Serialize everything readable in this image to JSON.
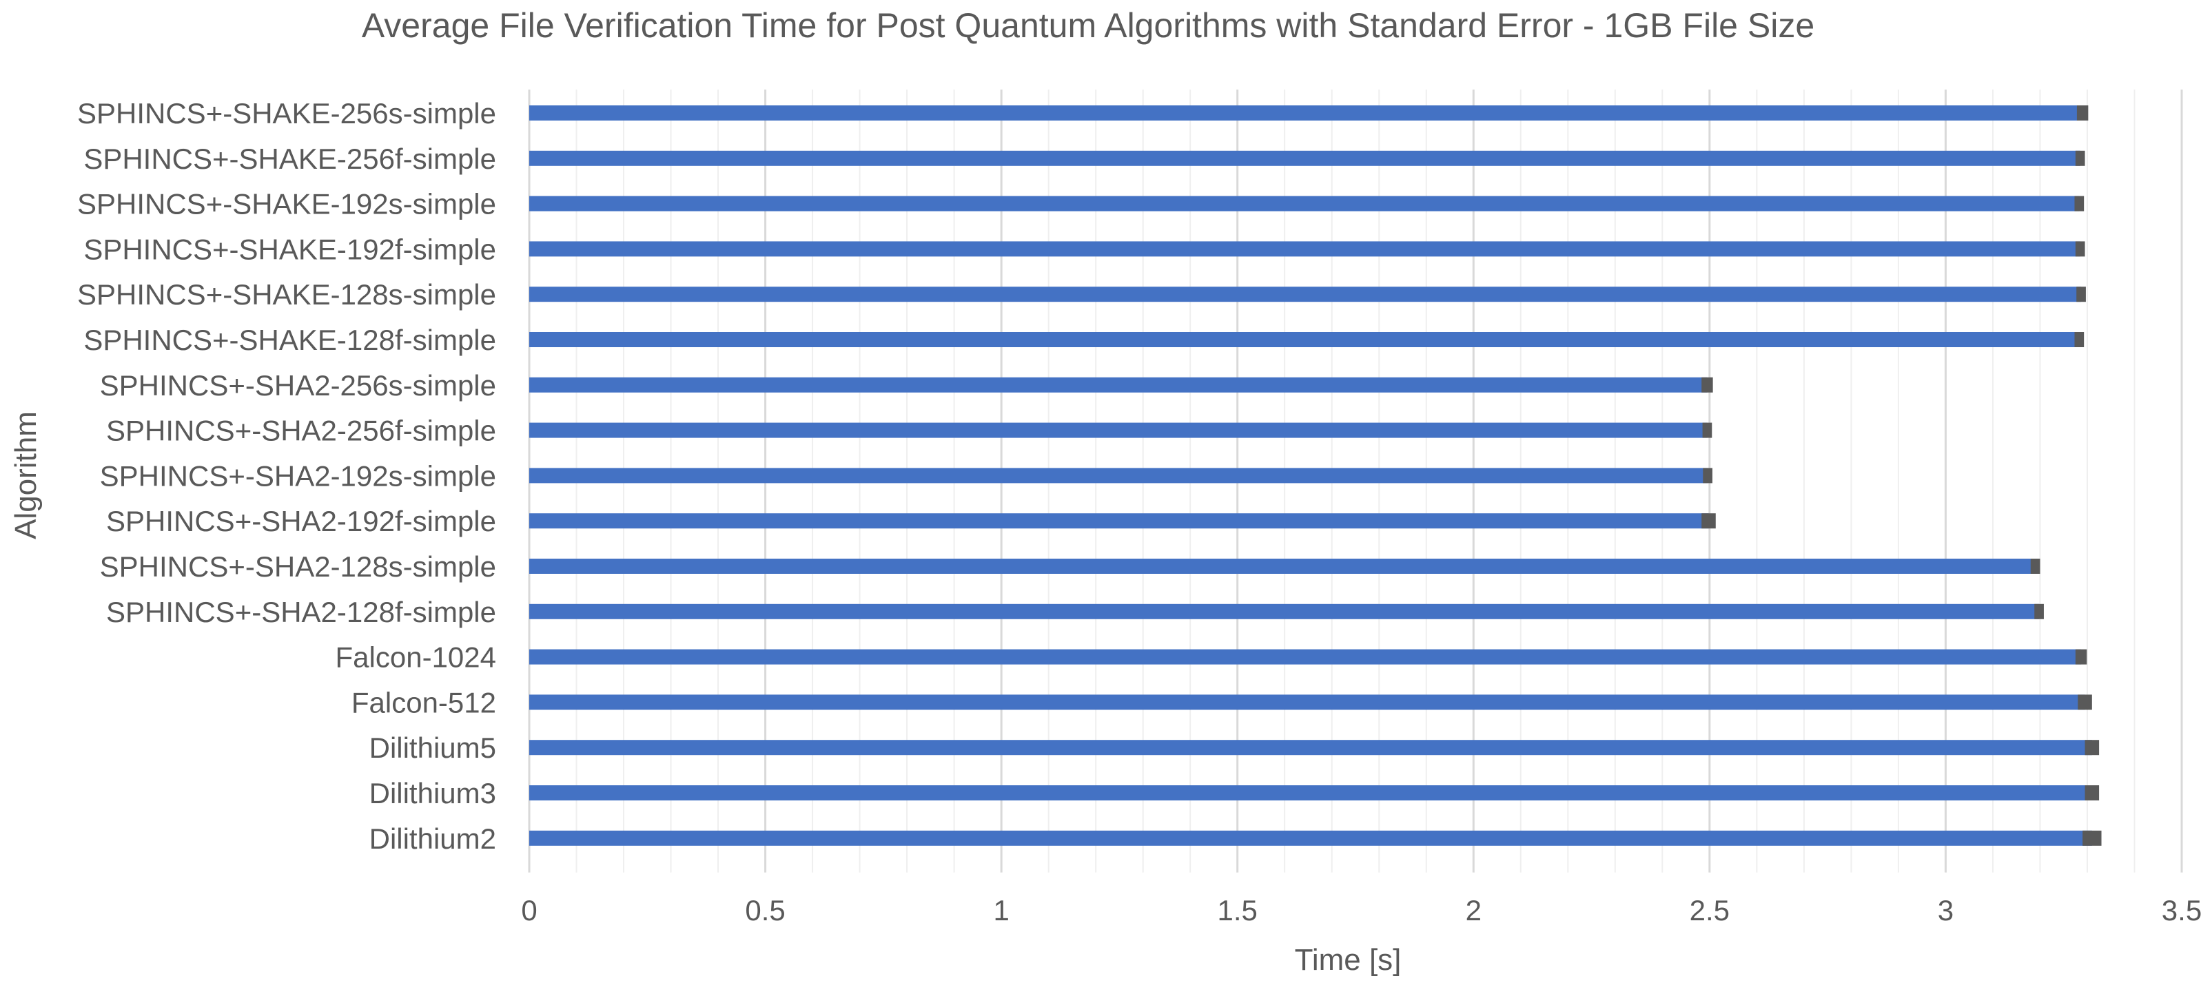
{
  "chart_data": {
    "type": "bar",
    "orientation": "horizontal",
    "title": "Average File Verification Time for Post Quantum Algorithms with Standard Error - 1GB File Size",
    "xlabel": "Time [s]",
    "ylabel": "Algorithm",
    "xlim": [
      0,
      3.5
    ],
    "x_ticks": [
      "0",
      "0.5",
      "1",
      "1.5",
      "2",
      "2.5",
      "3",
      "3.5"
    ],
    "grid": true,
    "legend": "none",
    "colors": {
      "bar": "#4472C4",
      "error_bar": "#595959",
      "text": "#595959",
      "gridline": "#D9D9D9",
      "minor_gridline": "#EFEFEF"
    },
    "categories": [
      "SPHINCS+-SHAKE-256s-simple",
      "SPHINCS+-SHAKE-256f-simple",
      "SPHINCS+-SHAKE-192s-simple",
      "SPHINCS+-SHAKE-192f-simple",
      "SPHINCS+-SHAKE-128s-simple",
      "SPHINCS+-SHAKE-128f-simple",
      "SPHINCS+-SHA2-256s-simple",
      "SPHINCS+-SHA2-256f-simple",
      "SPHINCS+-SHA2-192s-simple",
      "SPHINCS+-SHA2-192f-simple",
      "SPHINCS+-SHA2-128s-simple",
      "SPHINCS+-SHA2-128f-simple",
      "Falcon-1024",
      "Falcon-512",
      "Dilithium5",
      "Dilithium3",
      "Dilithium2"
    ],
    "values": [
      3.29,
      3.285,
      3.283,
      3.285,
      3.287,
      3.283,
      2.495,
      2.495,
      2.496,
      2.498,
      3.19,
      3.198,
      3.287,
      3.295,
      3.31,
      3.31,
      3.31
    ],
    "errors": [
      0.012,
      0.01,
      0.01,
      0.01,
      0.01,
      0.01,
      0.012,
      0.01,
      0.01,
      0.015,
      0.01,
      0.01,
      0.012,
      0.015,
      0.015,
      0.015,
      0.02
    ]
  }
}
